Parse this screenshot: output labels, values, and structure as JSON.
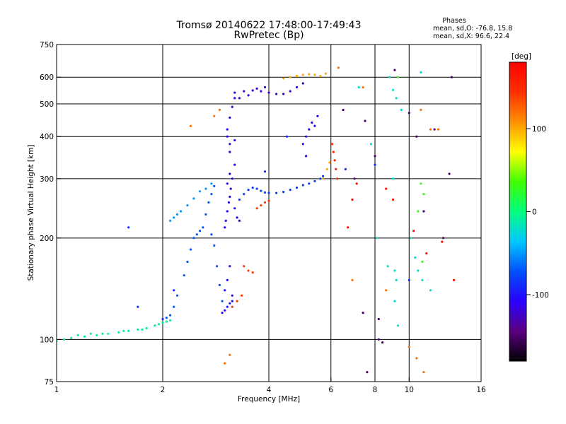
{
  "chart_data": {
    "type": "scatter",
    "title": "Tromsø 20140622 17:48:00-17:49:43",
    "subtitle": "RwPretec (Bp)",
    "stats_title": "Phases",
    "stats_o": "mean, sd,O: -76.8, 15.8",
    "stats_x": "mean, sd,X:  96.6, 22.4",
    "xlabel": "Frequency [MHz]",
    "ylabel": "Stationary phase Virtual Height [km]",
    "xscale": "log",
    "yscale": "log",
    "xlim": [
      1,
      16
    ],
    "ylim": [
      75,
      750
    ],
    "grid": true,
    "xticks": [
      1,
      2,
      4,
      6,
      8,
      10,
      16
    ],
    "yticks": [
      75,
      100,
      200,
      300,
      400,
      500,
      600,
      750
    ],
    "xgrid": [
      2,
      4,
      6,
      8,
      10
    ],
    "ygrid": [
      100,
      200,
      300,
      400,
      500,
      600
    ],
    "colorbar": {
      "label": "[deg]",
      "min": -180,
      "max": 180,
      "ticks": [
        100,
        0,
        -100
      ],
      "colors": [
        "#000000",
        "#5a0080",
        "#2a00ff",
        "#0050ff",
        "#00c8ff",
        "#00ff80",
        "#40ff00",
        "#ffff00",
        "#ff9000",
        "#ff3000",
        "#ff0000"
      ]
    },
    "series": [
      {
        "phase": -10,
        "points": [
          [
            1.0,
            99
          ],
          [
            1.05,
            100
          ],
          [
            1.1,
            101
          ],
          [
            1.15,
            103
          ],
          [
            1.2,
            102
          ],
          [
            1.25,
            104
          ],
          [
            1.3,
            103
          ],
          [
            1.35,
            104
          ],
          [
            1.4,
            104
          ],
          [
            1.5,
            105
          ],
          [
            1.55,
            106
          ],
          [
            1.6,
            106
          ],
          [
            1.7,
            107
          ],
          [
            1.75,
            107
          ],
          [
            1.8,
            108
          ],
          [
            1.9,
            110
          ],
          [
            1.95,
            111
          ],
          [
            2.0,
            112
          ],
          [
            2.05,
            113
          ],
          [
            2.1,
            114
          ]
        ]
      },
      {
        "phase": -70,
        "points": [
          [
            2.05,
            116
          ],
          [
            2.1,
            118
          ],
          [
            2.15,
            125
          ],
          [
            2.2,
            135
          ],
          [
            2.3,
            155
          ],
          [
            2.35,
            170
          ],
          [
            2.4,
            185
          ],
          [
            2.45,
            200
          ],
          [
            2.5,
            205
          ],
          [
            2.55,
            210
          ],
          [
            2.6,
            215
          ],
          [
            2.65,
            235
          ],
          [
            2.7,
            255
          ],
          [
            2.75,
            270
          ],
          [
            2.8,
            285
          ],
          [
            2.75,
            205
          ],
          [
            2.8,
            190
          ],
          [
            2.85,
            165
          ],
          [
            2.9,
            145
          ],
          [
            2.95,
            130
          ]
        ]
      },
      {
        "phase": -50,
        "points": [
          [
            2.1,
            225
          ],
          [
            2.15,
            230
          ],
          [
            2.2,
            235
          ],
          [
            2.25,
            240
          ],
          [
            2.35,
            250
          ],
          [
            2.45,
            262
          ],
          [
            2.55,
            275
          ],
          [
            2.65,
            280
          ],
          [
            2.75,
            290
          ]
        ]
      },
      {
        "phase": -100,
        "points": [
          [
            2.95,
            120
          ],
          [
            3.0,
            122
          ],
          [
            3.05,
            125
          ],
          [
            3.1,
            128
          ],
          [
            3.15,
            130
          ],
          [
            3.0,
            140
          ],
          [
            3.05,
            150
          ],
          [
            3.1,
            165
          ],
          [
            3.15,
            135
          ]
        ]
      },
      {
        "phase": -115,
        "points": [
          [
            3.0,
            215
          ],
          [
            3.02,
            225
          ],
          [
            3.05,
            240
          ],
          [
            3.08,
            255
          ],
          [
            3.1,
            265
          ],
          [
            3.12,
            280
          ],
          [
            3.15,
            300
          ],
          [
            3.1,
            310
          ],
          [
            3.05,
            290
          ],
          [
            3.2,
            245
          ],
          [
            3.25,
            230
          ],
          [
            3.3,
            225
          ],
          [
            3.2,
            330
          ],
          [
            3.1,
            360
          ],
          [
            3.2,
            390
          ],
          [
            3.05,
            420
          ],
          [
            3.1,
            455
          ],
          [
            3.15,
            490
          ],
          [
            3.2,
            520
          ],
          [
            3.05,
            400
          ],
          [
            3.1,
            380
          ]
        ]
      },
      {
        "phase": -80,
        "points": [
          [
            3.3,
            260
          ],
          [
            3.4,
            270
          ],
          [
            3.5,
            278
          ],
          [
            3.6,
            282
          ],
          [
            3.7,
            280
          ],
          [
            3.8,
            276
          ],
          [
            3.9,
            273
          ],
          [
            4.0,
            272
          ],
          [
            4.2,
            272
          ],
          [
            4.4,
            274
          ],
          [
            4.6,
            278
          ],
          [
            4.8,
            282
          ],
          [
            5.0,
            287
          ],
          [
            5.2,
            290
          ],
          [
            5.4,
            295
          ],
          [
            5.6,
            300
          ],
          [
            5.7,
            305
          ]
        ]
      },
      {
        "phase": 140,
        "points": [
          [
            3.7,
            245
          ],
          [
            3.8,
            250
          ],
          [
            3.9,
            255
          ],
          [
            4.0,
            258
          ]
        ]
      },
      {
        "phase": 140,
        "points": [
          [
            3.4,
            165
          ],
          [
            3.5,
            160
          ],
          [
            3.6,
            158
          ],
          [
            3.15,
            125
          ],
          [
            3.25,
            130
          ],
          [
            3.35,
            135
          ]
        ]
      },
      {
        "phase": -120,
        "points": [
          [
            3.2,
            540
          ],
          [
            3.4,
            545
          ],
          [
            3.6,
            548
          ],
          [
            3.8,
            545
          ],
          [
            4.0,
            540
          ],
          [
            4.2,
            535
          ],
          [
            4.4,
            535
          ],
          [
            4.6,
            545
          ],
          [
            4.8,
            560
          ],
          [
            5.0,
            575
          ],
          [
            3.3,
            520
          ],
          [
            3.5,
            530
          ],
          [
            3.7,
            555
          ],
          [
            3.9,
            560
          ]
        ]
      },
      {
        "phase": -110,
        "points": [
          [
            5.0,
            380
          ],
          [
            5.1,
            400
          ],
          [
            5.2,
            420
          ],
          [
            5.3,
            440
          ],
          [
            5.4,
            430
          ],
          [
            5.5,
            460
          ],
          [
            5.1,
            350
          ]
        ]
      },
      {
        "phase": 100,
        "points": [
          [
            4.4,
            595
          ],
          [
            4.6,
            600
          ],
          [
            4.8,
            605
          ],
          [
            5.0,
            610
          ],
          [
            5.2,
            612
          ],
          [
            5.4,
            610
          ],
          [
            5.6,
            605
          ],
          [
            5.8,
            615
          ],
          [
            5.7,
            300
          ],
          [
            5.85,
            320
          ],
          [
            5.95,
            335
          ]
        ]
      },
      {
        "phase": 150,
        "points": [
          [
            6.05,
            380
          ],
          [
            6.1,
            360
          ],
          [
            6.15,
            340
          ],
          [
            6.2,
            320
          ],
          [
            6.25,
            300
          ]
        ]
      },
      {
        "phase": 120,
        "points": [
          [
            2.4,
            430
          ],
          [
            2.8,
            460
          ],
          [
            2.9,
            480
          ],
          [
            6.3,
            640
          ],
          [
            6.9,
            150
          ],
          [
            7.4,
            560
          ],
          [
            8.6,
            140
          ],
          [
            10.8,
            480
          ],
          [
            11.5,
            420
          ],
          [
            12.1,
            420
          ],
          [
            3.0,
            85
          ],
          [
            3.1,
            90
          ],
          [
            10.0,
            95
          ],
          [
            10.5,
            88
          ],
          [
            11.0,
            80
          ]
        ]
      },
      {
        "phase": -150,
        "points": [
          [
            6.5,
            480
          ],
          [
            7.0,
            300
          ],
          [
            7.5,
            445
          ],
          [
            8.0,
            350
          ],
          [
            8.2,
            100
          ],
          [
            8.4,
            98
          ],
          [
            7.4,
            120
          ],
          [
            9.1,
            630
          ],
          [
            10.0,
            470
          ],
          [
            10.5,
            400
          ],
          [
            11.8,
            420
          ],
          [
            13.0,
            310
          ],
          [
            13.2,
            600
          ],
          [
            12.5,
            200
          ],
          [
            11.0,
            240
          ],
          [
            7.6,
            80
          ],
          [
            8.2,
            115
          ]
        ]
      },
      {
        "phase": -20,
        "points": [
          [
            7.2,
            560
          ],
          [
            7.8,
            380
          ],
          [
            8.8,
            600
          ],
          [
            9.0,
            550
          ],
          [
            9.2,
            520
          ],
          [
            9.5,
            480
          ],
          [
            9.1,
            160
          ],
          [
            9.2,
            150
          ],
          [
            9.1,
            130
          ],
          [
            9.3,
            110
          ],
          [
            10.1,
            200
          ],
          [
            10.4,
            175
          ],
          [
            10.6,
            160
          ],
          [
            10.9,
            150
          ],
          [
            11.5,
            140
          ],
          [
            8.1,
            200
          ],
          [
            8.7,
            165
          ],
          [
            9.0,
            300
          ],
          [
            10.8,
            620
          ]
        ]
      },
      {
        "phase": 30,
        "points": [
          [
            9.3,
            600
          ],
          [
            10.8,
            290
          ],
          [
            11.0,
            270
          ],
          [
            10.6,
            240
          ],
          [
            10.9,
            170
          ]
        ]
      },
      {
        "phase": 170,
        "points": [
          [
            6.7,
            215
          ],
          [
            6.9,
            260
          ],
          [
            7.1,
            290
          ],
          [
            8.6,
            280
          ],
          [
            9.0,
            260
          ],
          [
            10.3,
            210
          ],
          [
            11.2,
            180
          ],
          [
            12.4,
            195
          ],
          [
            13.4,
            150
          ]
        ]
      },
      {
        "phase": -90,
        "points": [
          [
            1.6,
            215
          ],
          [
            1.7,
            125
          ],
          [
            2.0,
            115
          ],
          [
            2.15,
            140
          ],
          [
            3.9,
            315
          ],
          [
            4.5,
            400
          ],
          [
            6.6,
            320
          ],
          [
            8.0,
            330
          ],
          [
            10.0,
            150
          ]
        ]
      }
    ]
  }
}
